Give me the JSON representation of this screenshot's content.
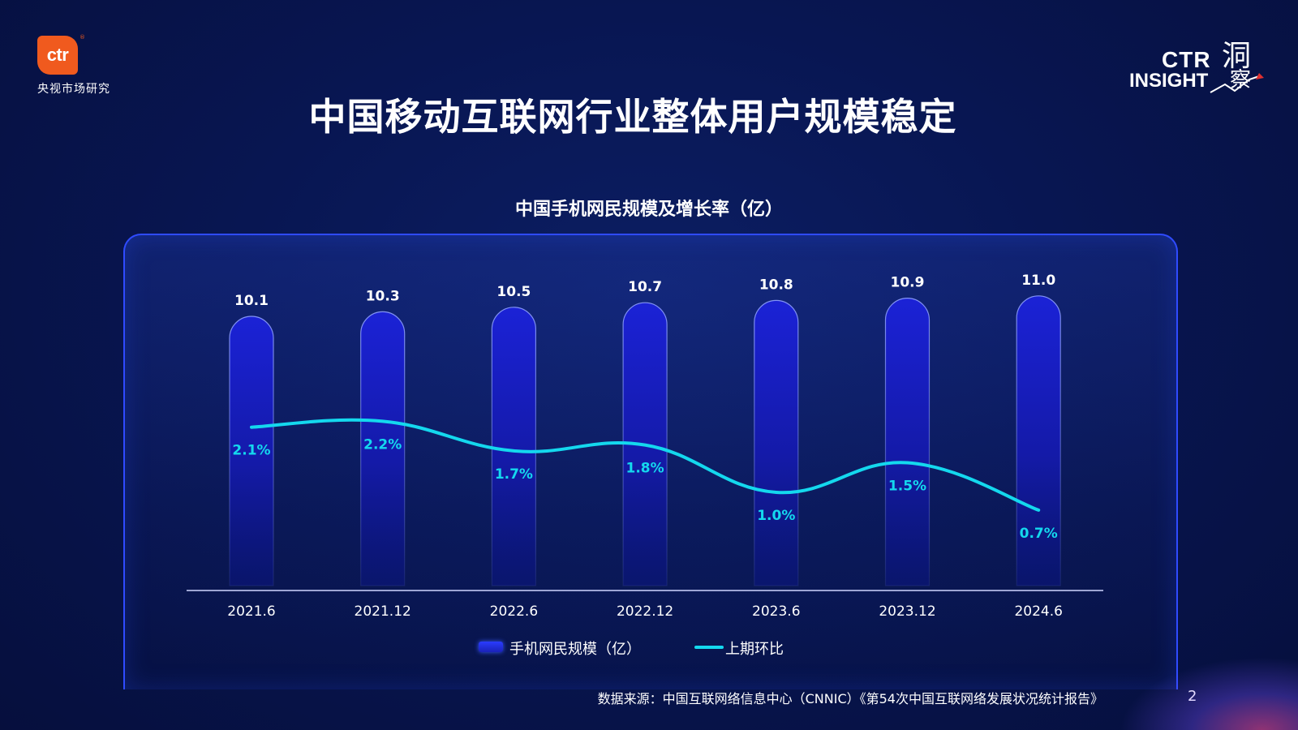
{
  "logo": {
    "brand": "ctr",
    "registered": "®",
    "subtitle": "央视市场研究"
  },
  "insight_logo": {
    "line1": "CTR",
    "line2": "INSIGHT",
    "kanji1": "洞",
    "kanji2": "察"
  },
  "page_title": "中国移动互联网行业整体用户规模稳定",
  "source": "数据来源：中国互联网络信息中心（CNNIC）《第54次中国互联网络发展状况统计报告》",
  "page_number": "2",
  "colors": {
    "bar_top": "#1b22d6",
    "bar_bottom": "#0a1480",
    "line": "#14d8ee",
    "background": "#081652",
    "panel_border": "#2f4bff"
  },
  "chart_data": {
    "type": "bar",
    "title": "中国手机网民规模及增长率（亿）",
    "categories": [
      "2021.6",
      "2021.12",
      "2022.6",
      "2022.12",
      "2023.6",
      "2023.12",
      "2024.6"
    ],
    "series": [
      {
        "name": "手机网民规模（亿）",
        "type": "bar",
        "values": [
          10.1,
          10.3,
          10.5,
          10.7,
          10.8,
          10.9,
          11.0
        ],
        "labels": [
          "10.1",
          "10.3",
          "10.5",
          "10.7",
          "10.8",
          "10.9",
          "11.0"
        ]
      },
      {
        "name": "上期环比",
        "type": "line",
        "values": [
          2.1,
          2.2,
          1.7,
          1.8,
          1.0,
          1.5,
          0.7
        ],
        "labels": [
          "2.1%",
          "2.2%",
          "1.7%",
          "1.8%",
          "1.0%",
          "1.5%",
          "0.7%"
        ]
      }
    ],
    "legend": "bottom-center",
    "grid": false
  }
}
